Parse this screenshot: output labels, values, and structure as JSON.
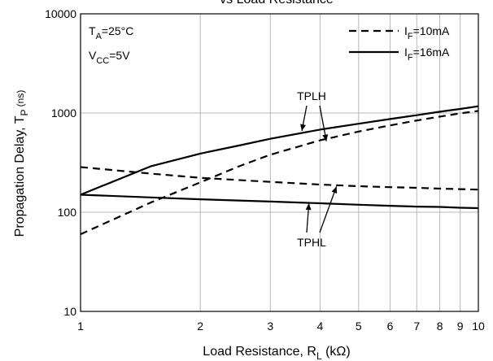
{
  "chart_data": {
    "type": "line",
    "title": "vs Load Resistance",
    "xlabel": {
      "main": "Load Resistance, R",
      "sub": "L",
      "unit": " (kΩ)"
    },
    "ylabel": {
      "main": "Propagation Delay, T",
      "sub": "P",
      "unit": " (ns)"
    },
    "x_scale": "log",
    "y_scale": "log",
    "xlim": [
      1,
      10
    ],
    "ylim": [
      10,
      10000
    ],
    "grid": true,
    "x_ticks": [
      1,
      2,
      3,
      4,
      5,
      6,
      7,
      8,
      9,
      10
    ],
    "x_tick_labels": [
      "1",
      "2",
      "3",
      "4",
      "5",
      "6",
      "7",
      "8",
      "9",
      "10"
    ],
    "y_ticks": [
      10,
      100,
      1000,
      10000
    ],
    "y_tick_labels": [
      "10",
      "100",
      "1000",
      "10000"
    ],
    "conditions": [
      {
        "main": "T",
        "sub": "A",
        "rest": "=25°C"
      },
      {
        "main": "V",
        "sub": "CC",
        "rest": "=5V"
      }
    ],
    "legend_position": "top-right",
    "legend": [
      {
        "main": "I",
        "sub": "F",
        "rest": "=10mA",
        "style": "dashed"
      },
      {
        "main": "I",
        "sub": "F",
        "rest": "=16mA",
        "style": "solid"
      }
    ],
    "series": [
      {
        "curve": "TPLH",
        "legend_index": 1,
        "style": "solid",
        "x": [
          1,
          1.5,
          2,
          2.5,
          3,
          4,
          5,
          6,
          7,
          8,
          9,
          10
        ],
        "y": [
          150,
          290,
          390,
          470,
          550,
          680,
          780,
          870,
          950,
          1030,
          1100,
          1170
        ]
      },
      {
        "curve": "TPLH",
        "legend_index": 0,
        "style": "dashed",
        "x": [
          1,
          1.5,
          2,
          2.5,
          3,
          4,
          5,
          6,
          7,
          8,
          9,
          10
        ],
        "y": [
          60,
          125,
          200,
          290,
          380,
          530,
          650,
          750,
          840,
          920,
          990,
          1050
        ]
      },
      {
        "curve": "TPHL",
        "legend_index": 0,
        "style": "dashed",
        "x": [
          1,
          1.5,
          2,
          3,
          4,
          5,
          6,
          7,
          8,
          9,
          10
        ],
        "y": [
          285,
          245,
          222,
          202,
          190,
          183,
          179,
          176,
          173,
          171,
          169
        ]
      },
      {
        "curve": "TPHL",
        "legend_index": 1,
        "style": "solid",
        "x": [
          1,
          1.5,
          2,
          3,
          4,
          5,
          6,
          7,
          8,
          9,
          10
        ],
        "y": [
          150,
          141,
          135,
          128,
          123,
          119,
          116,
          114,
          113,
          111,
          110
        ]
      }
    ],
    "annotations": [
      {
        "text": "TPLH",
        "targets": [
          {
            "x": 3.6,
            "y": 660
          },
          {
            "x": 4.15,
            "y": 520
          }
        ]
      },
      {
        "text": "TPHL",
        "targets": [
          {
            "x": 3.75,
            "y": 123
          },
          {
            "x": 4.4,
            "y": 182
          }
        ]
      }
    ]
  }
}
